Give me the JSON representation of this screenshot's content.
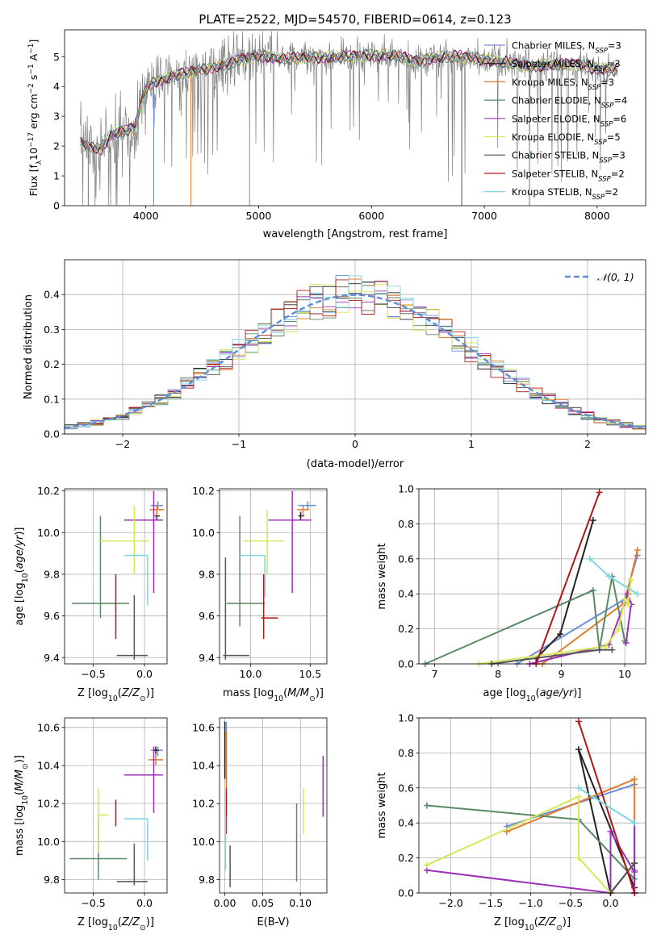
{
  "figure_title": "PLATE=2522, MJD=54570, FIBERID=0614, z=0.123",
  "models": [
    {
      "name": "Chabrier MILES, N$_{SSP}$=3",
      "prefix": "Chabrier MILES, N",
      "sub": "SSP",
      "suffix": "=3",
      "color": "#6a8fd8"
    },
    {
      "name": "Salpeter MILES, N$_{SSP}$=3",
      "prefix": "Salpeter MILES, N",
      "sub": "SSP",
      "suffix": "=3",
      "color": "#222222"
    },
    {
      "name": "Kroupa MILES, N$_{SSP}$=3",
      "prefix": "Kroupa MILES, N",
      "sub": "SSP",
      "suffix": "=3",
      "color": "#e07b2a"
    },
    {
      "name": "Chabrier ELODIE, N$_{SSP}$=4",
      "prefix": "Chabrier ELODIE, N",
      "sub": "SSP",
      "suffix": "=4",
      "color": "#5a8a64"
    },
    {
      "name": "Salpeter ELODIE, N$_{SSP}$=6",
      "prefix": "Salpeter ELODIE, N",
      "sub": "SSP",
      "suffix": "=6",
      "color": "#9b30b8"
    },
    {
      "name": "Kroupa ELODIE, N$_{SSP}$=5",
      "prefix": "Kroupa ELODIE, N",
      "sub": "SSP",
      "suffix": "=5",
      "color": "#d4e85a"
    },
    {
      "name": "Chabrier STELIB, N$_{SSP}$=3",
      "prefix": "Chabrier STELIB, N",
      "sub": "SSP",
      "suffix": "=3",
      "color": "#555555"
    },
    {
      "name": "Salpeter STELIB, N$_{SSP}$=2",
      "prefix": "Salpeter STELIB, N",
      "sub": "SSP",
      "suffix": "=2",
      "color": "#b01818"
    },
    {
      "name": "Kroupa STELIB, N$_{SSP}$=2",
      "prefix": "Kroupa STELIB, N",
      "sub": "SSP",
      "suffix": "=2",
      "color": "#7fd6e0"
    }
  ],
  "chart_data": [
    {
      "id": "spectrum",
      "type": "line",
      "title": "PLATE=2522, MJD=54570, FIBERID=0614, z=0.123",
      "xlabel": "wavelength [Angstrom, rest frame]",
      "ylabel": "Flux [f_λ 10^-17 erg cm^-2 s^-1 A^-1]",
      "xlim": [
        3280,
        8430
      ],
      "ylim": [
        0,
        5.9
      ],
      "xticks": [
        4000,
        5000,
        6000,
        7000,
        8000
      ],
      "yticks": [
        0,
        1,
        2,
        3,
        4,
        5
      ],
      "grid": false,
      "legend": "right",
      "data_color": "#808080",
      "wavelength_range": [
        3420,
        8180
      ],
      "continuum": [
        [
          3420,
          2.1
        ],
        [
          3500,
          1.95
        ],
        [
          3600,
          1.9
        ],
        [
          3700,
          2.45
        ],
        [
          3800,
          2.5
        ],
        [
          3900,
          2.6
        ],
        [
          4000,
          3.95
        ],
        [
          4100,
          4.2
        ],
        [
          4300,
          4.4
        ],
        [
          4500,
          4.55
        ],
        [
          4700,
          4.75
        ],
        [
          4860,
          4.9
        ],
        [
          5000,
          5.05
        ],
        [
          5200,
          4.95
        ],
        [
          5400,
          4.95
        ],
        [
          5600,
          5.0
        ],
        [
          5800,
          5.0
        ],
        [
          6000,
          5.05
        ],
        [
          6200,
          5.05
        ],
        [
          6400,
          4.85
        ],
        [
          6600,
          5.0
        ],
        [
          6800,
          5.0
        ],
        [
          7000,
          4.9
        ],
        [
          7200,
          4.8
        ],
        [
          7400,
          4.65
        ],
        [
          7600,
          4.75
        ],
        [
          7800,
          4.75
        ],
        [
          8000,
          4.6
        ],
        [
          8180,
          4.55
        ]
      ],
      "dropouts": [
        [
          3490,
          3
        ],
        [
          3550,
          0
        ],
        [
          4070,
          0
        ],
        [
          4920,
          0
        ],
        [
          6800,
          6
        ],
        [
          7400,
          3
        ],
        [
          4400,
          2
        ]
      ]
    },
    {
      "id": "residuals",
      "type": "histogram",
      "xlabel": "(data-model)/error",
      "ylabel": "Normed distribution",
      "xlim": [
        -2.5,
        2.5
      ],
      "ylim": [
        0,
        0.5
      ],
      "xticks": [
        -2,
        -1,
        0,
        1,
        2
      ],
      "yticks": [
        0.0,
        0.1,
        0.2,
        0.3,
        0.4
      ],
      "grid": true,
      "legend": "top-right",
      "reference": {
        "label": "N(0,1)",
        "mu": 0,
        "sigma": 1,
        "color": "#5b8dd8",
        "dash": "dashed"
      },
      "bins": 45
    },
    {
      "id": "age_vs_Z",
      "type": "errorbar",
      "xlabel": "Z [log10(Z/Z_sun)]",
      "ylabel": "age [log10(age/yr)]",
      "xlim": [
        -0.78,
        0.22
      ],
      "ylim": [
        9.37,
        10.21
      ],
      "xticks": [
        -0.5,
        0.0
      ],
      "yticks": [
        9.4,
        9.6,
        9.8,
        10.0,
        10.2
      ],
      "grid": true,
      "points": [
        {
          "x": 0.13,
          "y": 10.13,
          "xerr": [
            0.07,
            0.05
          ],
          "yerr": [
            0.02,
            0.02
          ]
        },
        {
          "x": 0.12,
          "y": 10.08,
          "xerr": [
            0.02,
            0.03
          ],
          "yerr": [
            0.02,
            0.02
          ]
        },
        {
          "x": 0.12,
          "y": 10.11,
          "xerr": [
            0.07,
            0.07
          ],
          "yerr": [
            0.03,
            0.02
          ]
        },
        {
          "x": -0.43,
          "y": 9.66,
          "xerr": [
            0.28,
            0.28
          ],
          "yerr": [
            0.07,
            0.42
          ]
        },
        {
          "x": 0.09,
          "y": 10.06,
          "xerr": [
            0.29,
            0.09
          ],
          "yerr": [
            0.35,
            0.14
          ]
        },
        {
          "x": -0.1,
          "y": 9.96,
          "xerr": [
            0.35,
            0.14
          ],
          "yerr": [
            0.16,
            0.17
          ]
        },
        {
          "x": -0.1,
          "y": 9.41,
          "xerr": [
            0.17,
            0.13
          ],
          "yerr": [
            0.02,
            0.29
          ]
        },
        {
          "x": -0.28,
          "y": 9.59,
          "xerr": [
            0.0,
            0.0
          ],
          "yerr": [
            0.1,
            0.21
          ]
        },
        {
          "x": 0.03,
          "y": 9.89,
          "xerr": [
            0.23,
            0.0
          ],
          "yerr": [
            0.24,
            0.0
          ]
        }
      ]
    },
    {
      "id": "age_vs_mass",
      "type": "errorbar",
      "xlabel": "mass [log10(M/M_sun)]",
      "ylabel": "",
      "xlim": [
        9.74,
        10.64
      ],
      "ylim": [
        9.37,
        10.21
      ],
      "xticks": [
        10.0,
        10.5
      ],
      "yticks": [
        9.4,
        9.6,
        9.8,
        10.0,
        10.2
      ],
      "grid": true,
      "points": [
        {
          "x": 10.48,
          "y": 10.13,
          "xerr": [
            0.08,
            0.07
          ],
          "yerr": [
            0.02,
            0.02
          ]
        },
        {
          "x": 10.42,
          "y": 10.08,
          "xerr": [
            0.02,
            0.03
          ],
          "yerr": [
            0.02,
            0.02
          ]
        },
        {
          "x": 10.44,
          "y": 10.11,
          "xerr": [
            0.05,
            0.05
          ],
          "yerr": [
            0.03,
            0.02
          ]
        },
        {
          "x": 9.91,
          "y": 9.66,
          "xerr": [
            0.11,
            0.21
          ],
          "yerr": [
            0.11,
            0.42
          ]
        },
        {
          "x": 10.35,
          "y": 10.06,
          "xerr": [
            0.2,
            0.16
          ],
          "yerr": [
            0.35,
            0.14
          ]
        },
        {
          "x": 10.14,
          "y": 9.96,
          "xerr": [
            0.2,
            0.14
          ],
          "yerr": [
            0.16,
            0.15
          ]
        },
        {
          "x": 9.79,
          "y": 9.41,
          "xerr": [
            0.02,
            0.2
          ],
          "yerr": [
            0.02,
            0.47
          ]
        },
        {
          "x": 10.11,
          "y": 9.59,
          "xerr": [
            0.02,
            0.12
          ],
          "yerr": [
            0.1,
            0.21
          ]
        },
        {
          "x": 10.12,
          "y": 9.89,
          "xerr": [
            0.22,
            0.0
          ],
          "yerr": [
            0.2,
            0.0
          ]
        }
      ]
    },
    {
      "id": "mass_weight_vs_age",
      "type": "line",
      "xlabel": "age [log10(age/yr)]",
      "ylabel": "mass weight",
      "xlim": [
        6.75,
        10.33
      ],
      "ylim": [
        0,
        1.0
      ],
      "xticks": [
        7,
        8,
        9,
        10
      ],
      "yticks": [
        0.0,
        0.2,
        0.4,
        0.6,
        0.8,
        1.0
      ],
      "grid": true,
      "series": [
        {
          "points": [
            [
              8.3,
              0.0
            ],
            [
              10.0,
              0.37
            ],
            [
              10.2,
              0.62
            ]
          ]
        },
        {
          "points": [
            [
              8.6,
              0.03
            ],
            [
              8.98,
              0.17
            ],
            [
              9.5,
              0.82
            ]
          ]
        },
        {
          "points": [
            [
              8.7,
              0.0
            ],
            [
              10.0,
              0.35
            ],
            [
              10.2,
              0.65
            ]
          ]
        },
        {
          "points": [
            [
              6.85,
              0.0
            ],
            [
              9.5,
              0.42
            ],
            [
              9.6,
              0.08
            ],
            [
              9.8,
              0.5
            ],
            [
              10.0,
              0.13
            ]
          ]
        },
        {
          "points": [
            [
              8.5,
              0.0
            ],
            [
              9.75,
              0.11
            ],
            [
              10.0,
              0.35
            ],
            [
              10.05,
              0.4
            ],
            [
              10.1,
              0.34
            ],
            [
              10.02,
              0.12
            ]
          ]
        },
        {
          "points": [
            [
              7.7,
              0.0
            ],
            [
              9.7,
              0.1
            ],
            [
              9.9,
              0.2
            ],
            [
              10.0,
              0.37
            ],
            [
              10.05,
              0.34
            ],
            [
              10.1,
              0.48
            ]
          ]
        },
        {
          "points": [
            [
              7.9,
              0.0
            ],
            [
              9.6,
              0.08
            ],
            [
              9.8,
              0.08
            ]
          ]
        },
        {
          "points": [
            [
              8.6,
              0.0
            ],
            [
              9.6,
              0.98
            ]
          ]
        },
        {
          "points": [
            [
              9.45,
              0.6
            ],
            [
              9.75,
              0.5
            ],
            [
              10.2,
              0.4
            ]
          ]
        }
      ]
    },
    {
      "id": "mass_vs_Z",
      "type": "errorbar",
      "xlabel": "Z [log10(Z/Z_sun)]",
      "ylabel": "mass [log10(M/M_sun)]",
      "xlim": [
        -0.78,
        0.22
      ],
      "ylim": [
        9.73,
        10.65
      ],
      "xticks": [
        -0.5,
        0.0
      ],
      "yticks": [
        9.8,
        10.0,
        10.2,
        10.4,
        10.6
      ],
      "grid": true,
      "points": [
        {
          "x": 0.13,
          "y": 10.48,
          "xerr": [
            0.07,
            0.05
          ],
          "yerr": [
            0.03,
            0.02
          ]
        },
        {
          "x": 0.11,
          "y": 10.48,
          "xerr": [
            0.02,
            0.03
          ],
          "yerr": [
            0.02,
            0.02
          ]
        },
        {
          "x": 0.11,
          "y": 10.43,
          "xerr": [
            0.07,
            0.07
          ],
          "yerr": [
            0.03,
            0.03
          ]
        },
        {
          "x": -0.45,
          "y": 9.91,
          "xerr": [
            0.28,
            0.28
          ],
          "yerr": [
            0.11,
            0.21
          ]
        },
        {
          "x": 0.09,
          "y": 10.35,
          "xerr": [
            0.29,
            0.09
          ],
          "yerr": [
            0.2,
            0.15
          ]
        },
        {
          "x": -0.45,
          "y": 10.14,
          "xerr": [
            0.0,
            0.1
          ],
          "yerr": [
            0.2,
            0.14
          ]
        },
        {
          "x": -0.1,
          "y": 9.79,
          "xerr": [
            0.17,
            0.13
          ],
          "yerr": [
            0.02,
            0.2
          ]
        },
        {
          "x": -0.28,
          "y": 10.1,
          "xerr": [
            0.0,
            0.0
          ],
          "yerr": [
            0.02,
            0.12
          ]
        },
        {
          "x": 0.03,
          "y": 10.12,
          "xerr": [
            0.23,
            0.0
          ],
          "yerr": [
            0.22,
            0.0
          ]
        }
      ]
    },
    {
      "id": "mass_vs_EBV",
      "type": "errorbar",
      "xlabel": "E(B-V)",
      "ylabel": "",
      "xlim": [
        -0.007,
        0.135
      ],
      "ylim": [
        9.73,
        10.65
      ],
      "xticks": [
        0.0,
        0.05,
        0.1
      ],
      "yticks": [
        9.8,
        10.0,
        10.2,
        10.4,
        10.6
      ],
      "grid": true,
      "points": [
        {
          "x": 0.002,
          "y": 10.48,
          "xerr": [
            0.0,
            0.0
          ],
          "yerr": [
            0.15,
            0.15
          ]
        },
        {
          "x": 0.0,
          "y": 10.48,
          "xerr": [
            0.0,
            0.0
          ],
          "yerr": [
            0.15,
            0.15
          ]
        },
        {
          "x": 0.002,
          "y": 10.43,
          "xerr": [
            0.0,
            0.0
          ],
          "yerr": [
            0.15,
            0.15
          ]
        },
        {
          "x": 0.095,
          "y": 9.99,
          "xerr": [
            0.0,
            0.0
          ],
          "yerr": [
            0.2,
            0.21
          ]
        },
        {
          "x": 0.13,
          "y": 10.29,
          "xerr": [
            0.0,
            0.0
          ],
          "yerr": [
            0.16,
            0.16
          ]
        },
        {
          "x": 0.104,
          "y": 10.14,
          "xerr": [
            0.0,
            0.0
          ],
          "yerr": [
            0.1,
            0.14
          ]
        },
        {
          "x": 0.007,
          "y": 9.87,
          "xerr": [
            0.0,
            0.0
          ],
          "yerr": [
            0.11,
            0.11
          ]
        },
        {
          "x": 0.002,
          "y": 10.16,
          "xerr": [
            0.0,
            0.0
          ],
          "yerr": [
            0.12,
            0.12
          ]
        },
        {
          "x": 0.001,
          "y": 10.0,
          "xerr": [
            0.0,
            0.0
          ],
          "yerr": [
            0.15,
            0.13
          ]
        }
      ]
    },
    {
      "id": "mass_weight_vs_Z",
      "type": "line",
      "xlabel": "Z [log10(Z/Z_sun)]",
      "ylabel": "mass weight",
      "xlim": [
        -2.4,
        0.44
      ],
      "ylim": [
        0,
        1.0
      ],
      "xticks": [
        -2.0,
        -1.5,
        -1.0,
        -0.5,
        0.0
      ],
      "yticks": [
        0.0,
        0.2,
        0.4,
        0.6,
        0.8,
        1.0
      ],
      "grid": true,
      "series": [
        {
          "points": [
            [
              -1.3,
              0.38
            ],
            [
              0.3,
              0.62
            ]
          ]
        },
        {
          "points": [
            [
              0.3,
              0.17
            ],
            [
              0.0,
              0.0
            ],
            [
              -0.4,
              0.82
            ],
            [
              0.3,
              0.03
            ]
          ]
        },
        {
          "points": [
            [
              -1.3,
              0.35
            ],
            [
              0.3,
              0.65
            ],
            [
              0.3,
              0.0
            ]
          ]
        },
        {
          "points": [
            [
              -2.3,
              0.5
            ],
            [
              -0.4,
              0.42
            ],
            [
              0.3,
              0.08
            ],
            [
              0.3,
              0.13
            ]
          ]
        },
        {
          "points": [
            [
              -2.3,
              0.13
            ],
            [
              0.0,
              0.0
            ],
            [
              0.0,
              0.35
            ],
            [
              0.3,
              0.12
            ],
            [
              0.3,
              0.4
            ],
            [
              0.3,
              0.0
            ]
          ]
        },
        {
          "points": [
            [
              -2.3,
              0.16
            ],
            [
              -0.4,
              0.55
            ],
            [
              -0.4,
              0.2
            ],
            [
              0.0,
              0.0
            ]
          ]
        },
        {
          "points": [
            [
              0.0,
              0.0
            ],
            [
              0.3,
              0.17
            ]
          ]
        },
        {
          "points": [
            [
              -0.4,
              0.98
            ],
            [
              0.3,
              0.0
            ]
          ]
        },
        {
          "points": [
            [
              -0.4,
              0.6
            ],
            [
              0.3,
              0.4
            ]
          ]
        }
      ]
    }
  ]
}
